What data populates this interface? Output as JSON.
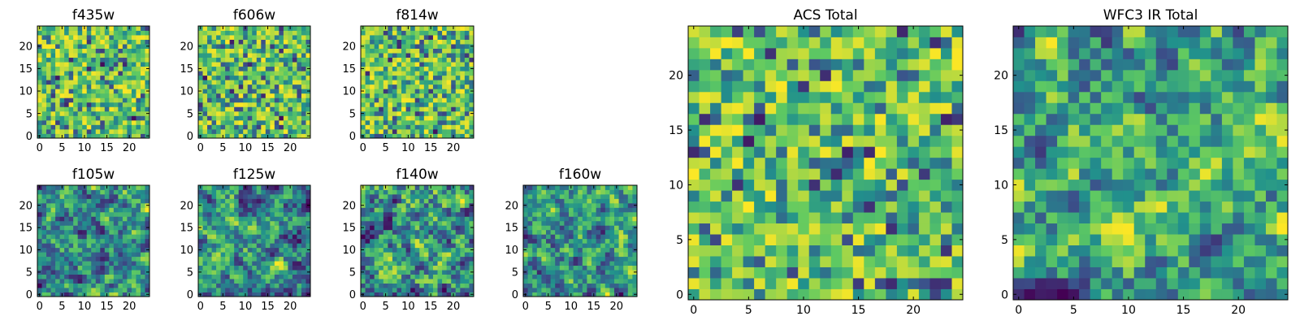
{
  "chart_data": [
    {
      "type": "heatmap",
      "title": "f435w",
      "xticks": [
        "0",
        "5",
        "10",
        "15",
        "20"
      ],
      "yticks": [
        "0",
        "5",
        "10",
        "15",
        "20"
      ],
      "grid_size": 25,
      "pattern": "noise",
      "seed": 11,
      "colormap": "viridis"
    },
    {
      "type": "heatmap",
      "title": "f606w",
      "xticks": [
        "0",
        "5",
        "10",
        "15",
        "20"
      ],
      "yticks": [
        "0",
        "5",
        "10",
        "15",
        "20"
      ],
      "grid_size": 25,
      "pattern": "noise",
      "seed": 23,
      "colormap": "viridis"
    },
    {
      "type": "heatmap",
      "title": "f814w",
      "xticks": [
        "0",
        "5",
        "10",
        "15",
        "20"
      ],
      "yticks": [
        "0",
        "5",
        "10",
        "15",
        "20"
      ],
      "grid_size": 25,
      "pattern": "noise",
      "seed": 37,
      "colormap": "viridis"
    },
    {
      "type": "heatmap",
      "title": "f105w",
      "xticks": [
        "0",
        "5",
        "10",
        "15",
        "20"
      ],
      "yticks": [
        "0",
        "5",
        "10",
        "15",
        "20"
      ],
      "grid_size": 25,
      "pattern": "smooth",
      "seed": 41,
      "colormap": "viridis"
    },
    {
      "type": "heatmap",
      "title": "f125w",
      "xticks": [
        "0",
        "5",
        "10",
        "15",
        "20"
      ],
      "yticks": [
        "0",
        "5",
        "10",
        "15",
        "20"
      ],
      "grid_size": 25,
      "pattern": "smooth",
      "seed": 53,
      "colormap": "viridis"
    },
    {
      "type": "heatmap",
      "title": "f140w",
      "xticks": [
        "0",
        "5",
        "10",
        "15",
        "20"
      ],
      "yticks": [
        "0",
        "5",
        "10",
        "15",
        "20"
      ],
      "grid_size": 25,
      "pattern": "smooth",
      "seed": 67,
      "colormap": "viridis"
    },
    {
      "type": "heatmap",
      "title": "f160w",
      "xticks": [
        "0",
        "5",
        "10",
        "15",
        "20"
      ],
      "yticks": [
        "0",
        "5",
        "10",
        "15",
        "20"
      ],
      "grid_size": 25,
      "pattern": "smooth",
      "seed": 79,
      "colormap": "viridis"
    },
    {
      "type": "heatmap",
      "title": "ACS Total",
      "xticks": [
        "0",
        "5",
        "10",
        "15",
        "20"
      ],
      "yticks": [
        "0",
        "5",
        "10",
        "15",
        "20"
      ],
      "grid_size": 25,
      "pattern": "noise",
      "seed": 83,
      "colormap": "viridis"
    },
    {
      "type": "heatmap",
      "title": "WFC3 IR Total",
      "xticks": [
        "0",
        "5",
        "10",
        "15",
        "20"
      ],
      "yticks": [
        "0",
        "5",
        "10",
        "15",
        "20"
      ],
      "grid_size": 25,
      "pattern": "smooth",
      "seed": 97,
      "colormap": "viridis"
    }
  ],
  "colors": {
    "viridis_low": "#440154",
    "viridis_mid": "#21918c",
    "viridis_high": "#fde725",
    "axis": "#000000",
    "background": "#ffffff"
  }
}
